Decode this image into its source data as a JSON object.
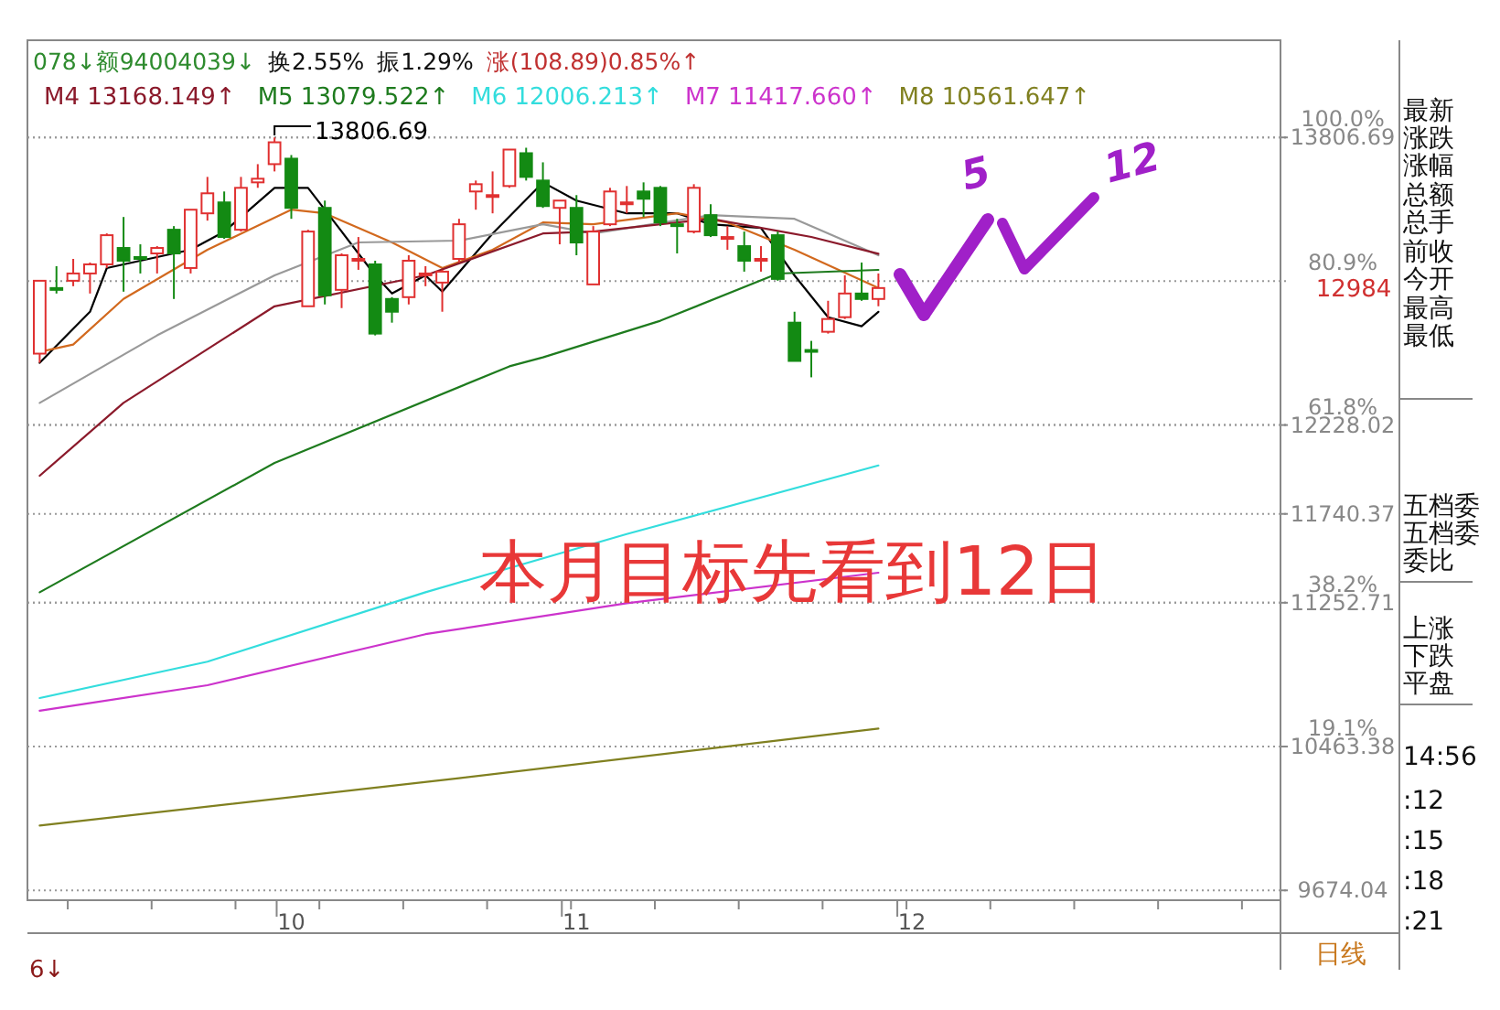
{
  "chart_data": [
    {
      "type": "candlestick",
      "categories": [
        null,
        null,
        null,
        null,
        null,
        null,
        null,
        null,
        null,
        null,
        null,
        null,
        null,
        null,
        null,
        "10",
        null,
        null,
        null,
        null,
        null,
        null,
        null,
        null,
        null,
        null,
        null,
        null,
        null,
        null,
        null,
        null,
        "11",
        null,
        null,
        null,
        null,
        null,
        null,
        null,
        null,
        null,
        null,
        null,
        null,
        null,
        null,
        null,
        null,
        null,
        null,
        null,
        "12",
        null,
        null,
        null,
        null,
        null,
        null,
        null,
        null,
        null,
        null,
        null,
        null,
        null,
        null,
        null,
        null,
        null,
        null,
        null,
        null,
        null
      ],
      "ohlc": [
        [
          12620,
          13020,
          12570,
          13020
        ],
        [
          12980,
          13100,
          12950,
          12970
        ],
        [
          13020,
          13140,
          12990,
          13060
        ],
        [
          13060,
          13120,
          12950,
          13110
        ],
        [
          13110,
          13280,
          13090,
          13270
        ],
        [
          13200,
          13370,
          12960,
          13130
        ],
        [
          13150,
          13220,
          13060,
          13140
        ],
        [
          13170,
          13210,
          13060,
          13200
        ],
        [
          13300,
          13320,
          12920,
          13170
        ],
        [
          13090,
          13410,
          13060,
          13410
        ],
        [
          13390,
          13590,
          13350,
          13500
        ],
        [
          13450,
          13510,
          13250,
          13260
        ],
        [
          13300,
          13590,
          13290,
          13530
        ],
        [
          13560,
          13660,
          13530,
          13580
        ],
        [
          13660,
          13806.69,
          13620,
          13780
        ],
        [
          13690,
          13710,
          13360,
          13420
        ],
        [
          12880,
          13300,
          12880,
          13290
        ],
        [
          13420,
          13460,
          12890,
          12940
        ],
        [
          12970,
          13170,
          12870,
          13160
        ],
        [
          13130,
          13260,
          13080,
          13140
        ],
        [
          13110,
          13130,
          12720,
          12730
        ],
        [
          12920,
          12930,
          12790,
          12850
        ],
        [
          12930,
          13160,
          12890,
          13130
        ],
        [
          13050,
          13100,
          12990,
          13060
        ],
        [
          13010,
          13080,
          12850,
          13070
        ],
        [
          13140,
          13360,
          13120,
          13330
        ],
        [
          13510,
          13570,
          13410,
          13550
        ],
        [
          13480,
          13620,
          13390,
          13490
        ],
        [
          13540,
          13740,
          13530,
          13740
        ],
        [
          13720,
          13750,
          13570,
          13590
        ],
        [
          13570,
          13670,
          13420,
          13430
        ],
        [
          13420,
          13460,
          13220,
          13460
        ],
        [
          13420,
          13490,
          13160,
          13230
        ],
        [
          13000,
          13320,
          13000,
          13290
        ],
        [
          13330,
          13530,
          13320,
          13510
        ],
        [
          13440,
          13540,
          13390,
          13450
        ],
        [
          13510,
          13560,
          13370,
          13470
        ],
        [
          13530,
          13540,
          13320,
          13340
        ],
        [
          13330,
          13360,
          13170,
          13320
        ],
        [
          13290,
          13550,
          13280,
          13530
        ],
        [
          13380,
          13440,
          13260,
          13270
        ],
        [
          13250,
          13320,
          13190,
          13260
        ],
        [
          13210,
          13290,
          13070,
          13130
        ],
        [
          13130,
          13210,
          13070,
          13140
        ],
        [
          13270,
          13290,
          13020,
          13030
        ],
        [
          12790,
          12850,
          12580,
          12580
        ],
        [
          12640,
          12690,
          12490,
          12630
        ],
        [
          12740,
          12910,
          12730,
          12810
        ],
        [
          12820,
          13050,
          12810,
          12950
        ],
        [
          12950,
          13120,
          12910,
          12920
        ],
        [
          12920,
          13060,
          12880,
          12980
        ],
        null,
        null,
        null,
        null,
        null,
        null,
        null,
        null,
        null,
        null,
        null,
        null,
        null,
        null,
        null,
        null,
        null,
        null,
        null,
        null,
        null,
        null,
        null
      ],
      "series": [
        {
          "type": "line",
          "color": "#000000",
          "values": [
            12570,
            null,
            null,
            12850,
            13090,
            null,
            null,
            null,
            null,
            13190,
            null,
            13290,
            null,
            null,
            13530,
            null,
            13530,
            null,
            13290,
            null,
            13050,
            12950,
            null,
            13050,
            12960,
            null,
            null,
            13280,
            null,
            null,
            13560,
            null,
            13460,
            null,
            null,
            13390,
            null,
            null,
            13390,
            null,
            13330,
            null,
            null,
            13310,
            null,
            13050,
            null,
            12820,
            null,
            12770,
            12850,
            null,
            null,
            null,
            null,
            null,
            null,
            null,
            null,
            null,
            null,
            null,
            null,
            null,
            null,
            null,
            null,
            null,
            null,
            null,
            null,
            null,
            null,
            null
          ]
        },
        {
          "type": "line",
          "color": "#d2691e",
          "values": [
            12630,
            null,
            12670,
            null,
            null,
            12920,
            null,
            null,
            null,
            null,
            13190,
            null,
            null,
            null,
            null,
            13410,
            null,
            13390,
            null,
            null,
            null,
            13230,
            null,
            null,
            13090,
            null,
            null,
            13190,
            null,
            null,
            13340,
            null,
            null,
            13330,
            null,
            null,
            null,
            null,
            13390,
            null,
            null,
            13340,
            null,
            null,
            null,
            13190,
            null,
            null,
            null,
            null,
            12980,
            null,
            null,
            null,
            null,
            null,
            null,
            null,
            null,
            null,
            null,
            null,
            null,
            null,
            null,
            null,
            null,
            null,
            null,
            null,
            null,
            null,
            null,
            null
          ]
        },
        {
          "type": "line",
          "color": "#999999",
          "values": [
            12350,
            null,
            null,
            null,
            null,
            null,
            null,
            12720,
            null,
            null,
            null,
            null,
            null,
            null,
            13050,
            null,
            null,
            null,
            null,
            13230,
            null,
            null,
            null,
            null,
            null,
            13240,
            null,
            null,
            null,
            null,
            13330,
            null,
            null,
            13280,
            null,
            null,
            null,
            null,
            null,
            null,
            13380,
            null,
            null,
            null,
            null,
            13360,
            null,
            null,
            null,
            null,
            13160,
            null,
            null,
            null,
            null,
            null,
            null,
            null,
            null,
            null,
            null,
            null,
            null,
            null,
            null,
            null,
            null,
            null,
            null,
            null,
            null,
            null,
            null,
            null
          ]
        },
        {
          "type": "line",
          "name": "M4 13168.149↑",
          "color": "#8b1a2b",
          "values": [
            11950,
            null,
            null,
            null,
            null,
            12350,
            null,
            null,
            null,
            null,
            null,
            null,
            null,
            null,
            12880,
            null,
            null,
            null,
            null,
            null,
            null,
            null,
            null,
            13050,
            null,
            null,
            null,
            null,
            null,
            null,
            13280,
            null,
            null,
            13290,
            null,
            null,
            null,
            null,
            null,
            null,
            13360,
            null,
            null,
            null,
            null,
            null,
            13260,
            null,
            null,
            null,
            13168.149,
            null,
            null,
            null,
            null,
            null,
            null,
            null,
            null,
            null,
            null,
            null,
            null,
            null,
            null,
            null,
            null,
            null,
            null,
            null,
            null,
            null,
            null,
            null
          ]
        },
        {
          "type": "line",
          "name": "M5 13079.522↑",
          "color": "#1e7b1e",
          "values": [
            11310,
            null,
            null,
            null,
            null,
            null,
            null,
            null,
            null,
            null,
            null,
            null,
            null,
            null,
            12020,
            null,
            null,
            null,
            null,
            null,
            null,
            null,
            null,
            null,
            null,
            null,
            null,
            null,
            12550,
            null,
            12600,
            null,
            null,
            null,
            null,
            null,
            null,
            12800,
            null,
            null,
            null,
            null,
            null,
            null,
            13060,
            null,
            null,
            null,
            null,
            null,
            13079.522,
            null,
            null,
            null,
            null,
            null,
            null,
            null,
            null,
            null,
            null,
            null,
            null,
            null,
            null,
            null,
            null,
            null,
            null,
            null,
            null,
            null,
            null,
            null
          ]
        },
        {
          "type": "line",
          "name": "M6 12006.213↑",
          "color": "#33dddd",
          "values": [
            10730,
            null,
            null,
            null,
            null,
            null,
            null,
            null,
            null,
            null,
            10930,
            null,
            null,
            null,
            null,
            null,
            null,
            null,
            null,
            null,
            null,
            null,
            null,
            11310,
            null,
            null,
            null,
            null,
            null,
            null,
            null,
            null,
            null,
            null,
            null,
            11630,
            null,
            null,
            null,
            null,
            null,
            null,
            null,
            null,
            null,
            null,
            null,
            null,
            null,
            null,
            12006.213,
            null,
            null,
            null,
            null,
            null,
            null,
            null,
            null,
            null,
            null,
            null,
            null,
            null,
            null,
            null,
            null,
            null,
            null,
            null,
            null,
            null,
            null,
            null
          ]
        },
        {
          "type": "line",
          "name": "M7 11417.660↑",
          "color": "#cc33cc",
          "values": [
            10660,
            null,
            null,
            null,
            null,
            null,
            null,
            null,
            null,
            null,
            10800,
            null,
            null,
            null,
            null,
            null,
            null,
            null,
            null,
            null,
            null,
            null,
            null,
            11080,
            null,
            null,
            null,
            null,
            null,
            null,
            null,
            null,
            null,
            null,
            null,
            11250,
            null,
            null,
            null,
            null,
            null,
            null,
            null,
            null,
            null,
            null,
            null,
            null,
            null,
            null,
            11417.66,
            null,
            null,
            null,
            null,
            null,
            null,
            null,
            null,
            null,
            null,
            null,
            null,
            null,
            null,
            null,
            null,
            null,
            null,
            null,
            null,
            null,
            null,
            null
          ]
        },
        {
          "type": "line",
          "name": "M8 10561.647↑",
          "color": "#808020",
          "values": [
            10030,
            null,
            null,
            null,
            null,
            null,
            null,
            null,
            null,
            null,
            null,
            null,
            null,
            null,
            null,
            null,
            null,
            null,
            null,
            null,
            null,
            null,
            null,
            null,
            null,
            10290,
            null,
            null,
            null,
            null,
            null,
            null,
            null,
            null,
            null,
            null,
            null,
            null,
            null,
            null,
            null,
            null,
            null,
            null,
            null,
            null,
            null,
            null,
            null,
            null,
            10561.647,
            null,
            null,
            null,
            null,
            null,
            null,
            null,
            null,
            null,
            null,
            null,
            null,
            null,
            null,
            null,
            null,
            null,
            null,
            null,
            null,
            null,
            null,
            null
          ]
        }
      ],
      "ylim": [
        9620,
        14340
      ],
      "yticks": [
        13806.69,
        12228.02,
        11740.37,
        11252.71,
        10463.38,
        9674.04
      ],
      "y2lim": [
        -1.31,
        112.9
      ],
      "y2ticks": [
        {
          "value": 100,
          "label": "100.0%"
        },
        {
          "value": 80.9,
          "label": "80.9%"
        },
        {
          "value": 61.8,
          "label": "61.8%"
        },
        {
          "value": 38.2,
          "label": "38.2%"
        },
        {
          "value": 19.1,
          "label": "19.1%"
        }
      ],
      "grid": "y",
      "legend": "top left",
      "annotations": [
        "078↓额94004039↓",
        "换2.55%",
        "振1.29%",
        "涨(108.89)0.85%↑",
        "本月目标先看到12日",
        "5",
        "12",
        "6↓",
        "日线",
        "13806.69",
        "12984",
        "最新",
        "涨跌",
        "涨幅",
        "总额",
        "总手",
        "前收",
        "今开",
        "最高",
        "最低",
        "五档委",
        "五档委",
        "委比",
        "上涨",
        "下跌",
        "平盘",
        "14:56",
        ":12",
        ":15",
        ":18",
        ":21"
      ]
    }
  ]
}
